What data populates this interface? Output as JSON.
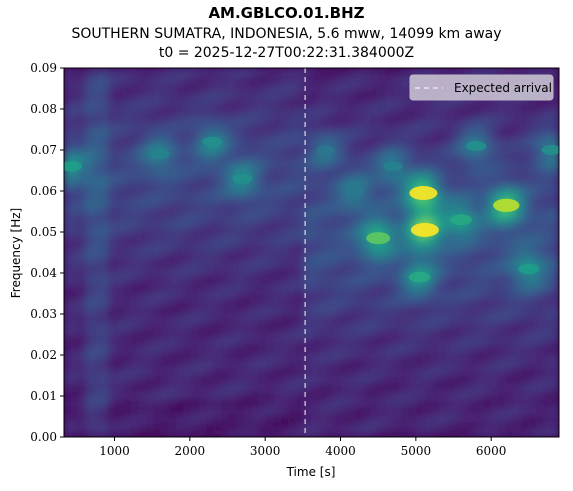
{
  "header": {
    "station": "AM.GBLCO.01.BHZ",
    "event": "SOUTHERN SUMATRA, INDONESIA, 5.6 mww, 14099 km away",
    "t0": "t0 = 2025-12-27T00:22:31.384000Z"
  },
  "chart_data": {
    "type": "heatmap",
    "title": "AM.GBLCO.01.BHZ",
    "xlabel": "Time [s]",
    "ylabel": "Frequency [Hz]",
    "xlim": [
      330,
      6900
    ],
    "ylim": [
      0,
      0.09
    ],
    "xticks": [
      1000,
      2000,
      3000,
      4000,
      5000,
      6000
    ],
    "yticks": [
      0.0,
      0.01,
      0.02,
      0.03,
      0.04,
      0.05,
      0.06,
      0.07,
      0.08,
      0.09
    ],
    "ytick_labels": [
      "0.00",
      "0.01",
      "0.02",
      "0.03",
      "0.04",
      "0.05",
      "0.06",
      "0.07",
      "0.08",
      "0.09"
    ],
    "colormap": "viridis",
    "expected_arrival": 3530,
    "legend": {
      "label": "Expected arrival",
      "placement": "top-right"
    },
    "hotspots": [
      {
        "t": 5100,
        "f": 0.0595,
        "amp": 1.0
      },
      {
        "t": 5120,
        "f": 0.0505,
        "amp": 1.0
      },
      {
        "t": 6200,
        "f": 0.0565,
        "amp": 0.9
      },
      {
        "t": 4500,
        "f": 0.0485,
        "amp": 0.75
      },
      {
        "t": 5050,
        "f": 0.039,
        "amp": 0.6
      },
      {
        "t": 5600,
        "f": 0.053,
        "amp": 0.6
      },
      {
        "t": 430,
        "f": 0.066,
        "amp": 0.55
      },
      {
        "t": 2300,
        "f": 0.072,
        "amp": 0.5
      },
      {
        "t": 2700,
        "f": 0.063,
        "amp": 0.5
      },
      {
        "t": 1600,
        "f": 0.069,
        "amp": 0.45
      },
      {
        "t": 6500,
        "f": 0.041,
        "amp": 0.55
      },
      {
        "t": 6800,
        "f": 0.07,
        "amp": 0.5
      },
      {
        "t": 5800,
        "f": 0.071,
        "amp": 0.5
      },
      {
        "t": 4700,
        "f": 0.066,
        "amp": 0.45
      },
      {
        "t": 4200,
        "f": 0.06,
        "amp": 0.4
      },
      {
        "t": 3800,
        "f": 0.07,
        "amp": 0.4
      }
    ]
  },
  "colors": {
    "background": "#440154",
    "line": "#ffffff",
    "legend_bg": "#cfc9d6"
  }
}
